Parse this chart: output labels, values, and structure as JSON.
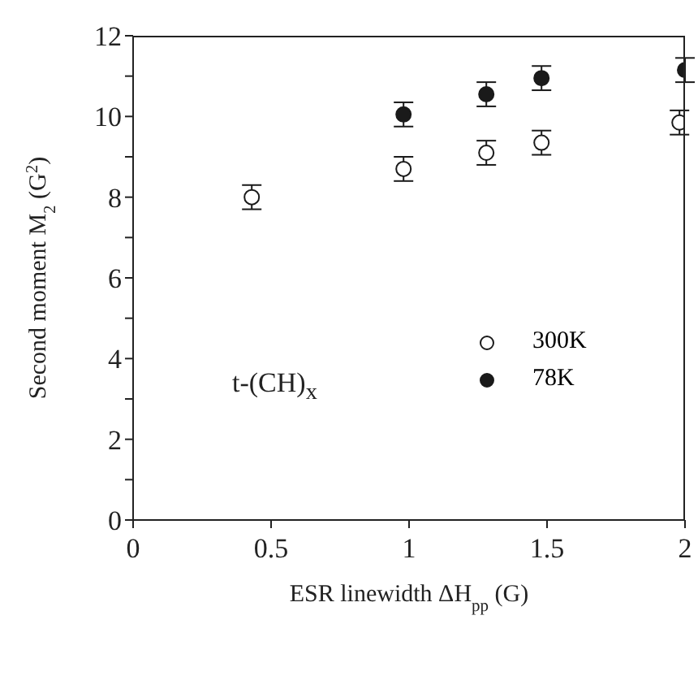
{
  "chart_data": {
    "type": "scatter",
    "xlabel": "ESR linewidth ΔH$_{pp}$ (G)",
    "ylabel": "Second moment M$_{2}$ (G$^{2}$)",
    "xlim": [
      0,
      2
    ],
    "xticks": [
      0,
      0.5,
      1,
      1.5,
      2
    ],
    "ylim": [
      0,
      12
    ],
    "yticks": [
      0,
      {
        "value": 1,
        "label": null
      },
      2,
      {
        "value": 3,
        "label": null
      },
      4,
      {
        "value": 5,
        "label": null
      },
      6,
      {
        "value": 7,
        "label": null
      },
      8,
      {
        "value": 9,
        "label": null
      },
      10,
      {
        "value": 11,
        "label": null
      },
      12
    ],
    "grid": false,
    "legend": "right",
    "marker": "circle",
    "annotations": [
      "t-(CH)$_{x}$"
    ],
    "series": [
      {
        "name": "300K",
        "color": "#1a1a1a",
        "x": [
          0.43,
          0.98,
          1.28,
          1.48,
          1.98
        ],
        "values": [
          8.0,
          8.7,
          9.1,
          9.35,
          9.85
        ],
        "errors": [
          0.3,
          0.3,
          0.3,
          0.3,
          0.3
        ]
      },
      {
        "name": "78K",
        "color": "#1a1a1a",
        "x": [
          0.98,
          1.28,
          1.48,
          2.0
        ],
        "values": [
          10.05,
          10.55,
          10.95,
          11.15
        ],
        "errors": [
          0.3,
          0.3,
          0.3,
          0.3
        ]
      }
    ]
  }
}
